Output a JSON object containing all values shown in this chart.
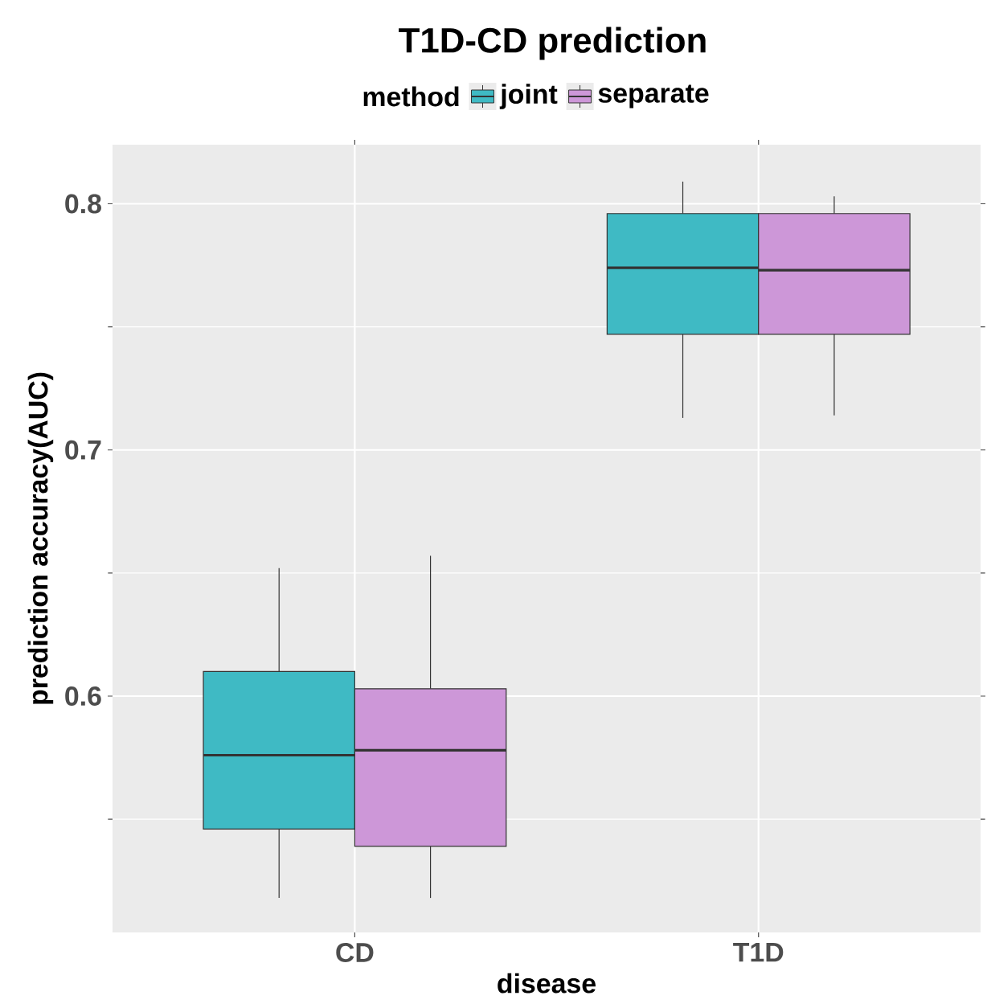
{
  "chart_data": {
    "type": "box",
    "title": "T1D-CD prediction",
    "xlabel": "disease",
    "ylabel": "prediction accuracy(AUC)",
    "legend_title": "method",
    "legend": "top",
    "grid": true,
    "categories": [
      "CD",
      "T1D"
    ],
    "ylim": [
      0.504,
      0.824
    ],
    "yticks": [
      0.6,
      0.7,
      0.8
    ],
    "series": [
      {
        "name": "joint",
        "color": "#3fbac4",
        "boxes": [
          {
            "low": 0.518,
            "q1": 0.546,
            "median": 0.576,
            "q3": 0.61,
            "high": 0.652
          },
          {
            "low": 0.713,
            "q1": 0.747,
            "median": 0.774,
            "q3": 0.796,
            "high": 0.809
          }
        ]
      },
      {
        "name": "separate",
        "color": "#cd97d8",
        "boxes": [
          {
            "low": 0.518,
            "q1": 0.539,
            "median": 0.578,
            "q3": 0.603,
            "high": 0.657
          },
          {
            "low": 0.714,
            "q1": 0.747,
            "median": 0.773,
            "q3": 0.796,
            "high": 0.803
          }
        ]
      }
    ]
  }
}
